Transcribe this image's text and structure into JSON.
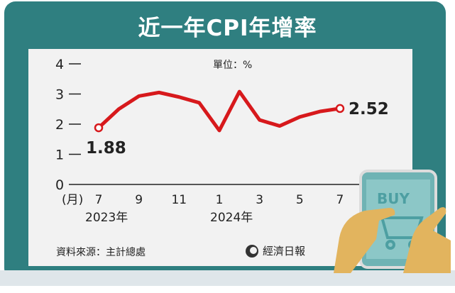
{
  "title": "近一年CPI年增率",
  "unit_label": "單位：%",
  "source": "資料來源：主計總處",
  "publisher": "經濟日報",
  "sticker_text": "BUY",
  "colors": {
    "frame": "#2f7f80",
    "panel": "#f2f2f2",
    "line": "#d7191c",
    "text": "#222222"
  },
  "chart_data": {
    "type": "line",
    "x": [
      "2023-07",
      "2023-08",
      "2023-09",
      "2023-10",
      "2023-11",
      "2023-12",
      "2024-01",
      "2024-02",
      "2024-03",
      "2024-04",
      "2024-05",
      "2024-06",
      "2024-07"
    ],
    "series": [
      {
        "values": [
          1.88,
          2.5,
          2.93,
          3.05,
          2.9,
          2.71,
          1.79,
          3.08,
          2.14,
          1.94,
          2.24,
          2.42,
          2.52
        ]
      }
    ],
    "ylim": [
      0,
      4
    ],
    "yticks": [
      "0",
      "1",
      "2",
      "3",
      "4"
    ],
    "xtick_labels": [
      "(月)",
      "7",
      "9",
      "11",
      "1",
      "3",
      "5",
      "7"
    ],
    "year_labels": [
      "2023年",
      "2024年"
    ],
    "annotations": [
      {
        "label": "1.88",
        "index": 0
      },
      {
        "label": "2.52",
        "index": 12
      }
    ],
    "grid": false
  }
}
